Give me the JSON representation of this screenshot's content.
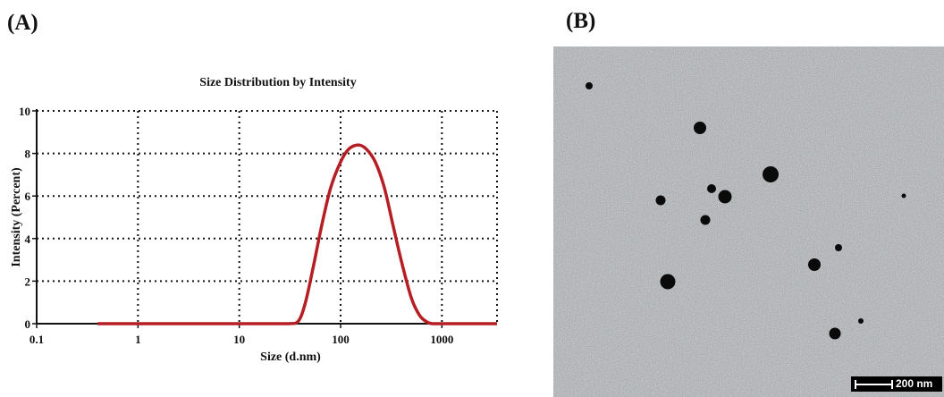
{
  "panels": {
    "a_label": "(A)",
    "b_label": "(B)"
  },
  "chart_data": {
    "type": "line",
    "title": "Size Distribution by Intensity",
    "xlabel": "Size (d.nm)",
    "ylabel": "Intensity (Percent)",
    "x_scale": "log",
    "xlim": [
      0.1,
      3500
    ],
    "ylim": [
      0,
      10
    ],
    "x_ticks": [
      0.1,
      1,
      10,
      100,
      1000
    ],
    "x_tick_labels": [
      "0.1",
      "1",
      "10",
      "100",
      "1000"
    ],
    "y_ticks": [
      0,
      2,
      4,
      6,
      8,
      10
    ],
    "y_tick_labels": [
      "0",
      "2",
      "4",
      "6",
      "8",
      "10"
    ],
    "grid": true,
    "line_color": "#b51f24",
    "series": [
      {
        "x": [
          0.4,
          1,
          10,
          30,
          38,
          45,
          55,
          65,
          80,
          100,
          120,
          150,
          180,
          220,
          270,
          330,
          400,
          500,
          600,
          700,
          800,
          1000,
          2000,
          3500
        ],
        "y": [
          0,
          0,
          0,
          0,
          0.1,
          1.0,
          2.9,
          4.6,
          6.4,
          7.6,
          8.2,
          8.4,
          8.2,
          7.6,
          6.4,
          4.6,
          2.9,
          1.2,
          0.4,
          0.1,
          0,
          0,
          0,
          0
        ]
      }
    ]
  },
  "tem": {
    "scale_bar_label": "200 nm",
    "background_color": "#9ea1a4",
    "particle_color": "#0a0a0a"
  }
}
